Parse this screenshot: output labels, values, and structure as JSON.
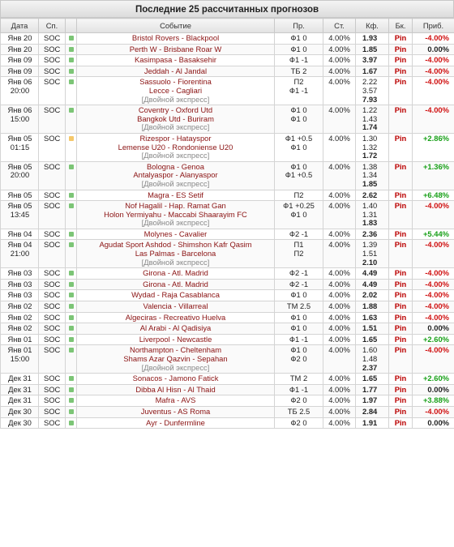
{
  "title": "Последние 25 рассчитанных прогнозов",
  "headers": {
    "date": "Дата",
    "sport": "Сп.",
    "event": "Событие",
    "pred": "Пр.",
    "stake": "Ст.",
    "odds": "Кф.",
    "bk": "Бк.",
    "profit": "Приб."
  },
  "rows": [
    {
      "date": [
        "Янв 20"
      ],
      "sport": "SOC",
      "status": "green",
      "events": [
        "Bristol Rovers - Blackpool"
      ],
      "preds": [
        "Ф1 0"
      ],
      "stake": "4.00%",
      "odds": [
        "1.93"
      ],
      "bk": "Pin",
      "profit": "-4.00%",
      "profit_type": "neg"
    },
    {
      "date": [
        "Янв 20"
      ],
      "sport": "SOC",
      "status": "green",
      "events": [
        "Perth W - Brisbane Roar W"
      ],
      "preds": [
        "Ф1 0"
      ],
      "stake": "4.00%",
      "odds": [
        "1.85"
      ],
      "bk": "Pin",
      "profit": "0.00%",
      "profit_type": "zero"
    },
    {
      "date": [
        "Янв 09"
      ],
      "sport": "SOC",
      "status": "green",
      "events": [
        "Kasimpasa - Basaksehir"
      ],
      "preds": [
        "Ф1 -1"
      ],
      "stake": "4.00%",
      "odds": [
        "3.97"
      ],
      "bk": "Pin",
      "profit": "-4.00%",
      "profit_type": "neg"
    },
    {
      "date": [
        "Янв 09"
      ],
      "sport": "SOC",
      "status": "green",
      "events": [
        "Jeddah - Al Jandal"
      ],
      "preds": [
        "ТБ 2"
      ],
      "stake": "4.00%",
      "odds": [
        "1.67"
      ],
      "bk": "Pin",
      "profit": "-4.00%",
      "profit_type": "neg"
    },
    {
      "date": [
        "Янв 06",
        "20:00"
      ],
      "sport": "SOC",
      "status": "green",
      "events": [
        "Sassuolo - Fiorentina",
        "Lecce - Cagliari"
      ],
      "express": "[Двойной экспресс]",
      "preds": [
        "П2",
        "Ф1 -1"
      ],
      "stake": "4.00%",
      "odds": [
        "2.22",
        "3.57",
        "7.93"
      ],
      "bk": "Pin",
      "profit": "-4.00%",
      "profit_type": "neg"
    },
    {
      "date": [
        "Янв 06",
        "15:00"
      ],
      "sport": "SOC",
      "status": "green",
      "events": [
        "Coventry - Oxford Utd",
        "Bangkok Utd - Buriram"
      ],
      "express": "[Двойной экспресс]",
      "preds": [
        "Ф1 0",
        "Ф1 0"
      ],
      "stake": "4.00%",
      "odds": [
        "1.22",
        "1.43",
        "1.74"
      ],
      "bk": "Pin",
      "profit": "-4.00%",
      "profit_type": "neg"
    },
    {
      "date": [
        "Янв 05",
        "01:15"
      ],
      "sport": "SOC",
      "status": "yellow",
      "events": [
        "Rizespor - Hatayspor",
        "Lemense U20 - Rondoniense U20"
      ],
      "express": "[Двойной экспресс]",
      "preds": [
        "Ф1 +0.5",
        "Ф1 0"
      ],
      "stake": "4.00%",
      "odds": [
        "1.30",
        "1.32",
        "1.72"
      ],
      "bk": "Pin",
      "profit": "+2.86%",
      "profit_type": "pos"
    },
    {
      "date": [
        "Янв 05",
        "20:00"
      ],
      "sport": "SOC",
      "status": "green",
      "events": [
        "Bologna - Genoa",
        "Antalyaspor - Alanyaspor"
      ],
      "express": "[Двойной экспресс]",
      "preds": [
        "Ф1 0",
        "Ф1 +0.5"
      ],
      "stake": "4.00%",
      "odds": [
        "1.38",
        "1.34",
        "1.85"
      ],
      "bk": "Pin",
      "profit": "+1.36%",
      "profit_type": "pos"
    },
    {
      "date": [
        "Янв 05"
      ],
      "sport": "SOC",
      "status": "green",
      "events": [
        "Magra - ES Setif"
      ],
      "preds": [
        "П2"
      ],
      "stake": "4.00%",
      "odds": [
        "2.62"
      ],
      "bk": "Pin",
      "profit": "+6.48%",
      "profit_type": "pos"
    },
    {
      "date": [
        "Янв 05",
        "13:45"
      ],
      "sport": "SOC",
      "status": "green",
      "events": [
        "Nof Hagalil - Hap. Ramat Gan",
        "Holon Yermiyahu - Maccabi Shaarayim FC"
      ],
      "express": "[Двойной экспресс]",
      "preds": [
        "Ф1 +0.25",
        "Ф1 0"
      ],
      "stake": "4.00%",
      "odds": [
        "1.40",
        "1.31",
        "1.83"
      ],
      "bk": "Pin",
      "profit": "-4.00%",
      "profit_type": "neg"
    },
    {
      "date": [
        "Янв 04"
      ],
      "sport": "SOC",
      "status": "green",
      "events": [
        "Molynes - Cavalier"
      ],
      "preds": [
        "Ф2 -1"
      ],
      "stake": "4.00%",
      "odds": [
        "2.36"
      ],
      "bk": "Pin",
      "profit": "+5.44%",
      "profit_type": "pos"
    },
    {
      "date": [
        "Янв 04",
        "21:00"
      ],
      "sport": "SOC",
      "status": "green",
      "events": [
        "Agudat Sport Ashdod - Shimshon Kafr Qasim",
        "Las Palmas - Barcelona"
      ],
      "express": "[Двойной экспресс]",
      "preds": [
        "П1",
        "П2"
      ],
      "stake": "4.00%",
      "odds": [
        "1.39",
        "1.51",
        "2.10"
      ],
      "bk": "Pin",
      "profit": "-4.00%",
      "profit_type": "neg"
    },
    {
      "date": [
        "Янв 03"
      ],
      "sport": "SOC",
      "status": "green",
      "events": [
        "Girona - Atl. Madrid"
      ],
      "preds": [
        "Ф2 -1"
      ],
      "stake": "4.00%",
      "odds": [
        "4.49"
      ],
      "bk": "Pin",
      "profit": "-4.00%",
      "profit_type": "neg"
    },
    {
      "date": [
        "Янв 03"
      ],
      "sport": "SOC",
      "status": "green",
      "events": [
        "Girona - Atl. Madrid"
      ],
      "preds": [
        "Ф2 -1"
      ],
      "stake": "4.00%",
      "odds": [
        "4.49"
      ],
      "bk": "Pin",
      "profit": "-4.00%",
      "profit_type": "neg"
    },
    {
      "date": [
        "Янв 03"
      ],
      "sport": "SOC",
      "status": "green",
      "events": [
        "Wydad - Raja Casablanca"
      ],
      "preds": [
        "Ф1 0"
      ],
      "stake": "4.00%",
      "odds": [
        "2.02"
      ],
      "bk": "Pin",
      "profit": "-4.00%",
      "profit_type": "neg"
    },
    {
      "date": [
        "Янв 02"
      ],
      "sport": "SOC",
      "status": "green",
      "events": [
        "Valencia - Villarreal"
      ],
      "preds": [
        "ТМ 2.5"
      ],
      "stake": "4.00%",
      "odds": [
        "1.88"
      ],
      "bk": "Pin",
      "profit": "-4.00%",
      "profit_type": "neg"
    },
    {
      "date": [
        "Янв 02"
      ],
      "sport": "SOC",
      "status": "green",
      "events": [
        "Algeciras - Recreativo Huelva"
      ],
      "preds": [
        "Ф1 0"
      ],
      "stake": "4.00%",
      "odds": [
        "1.63"
      ],
      "bk": "Pin",
      "profit": "-4.00%",
      "profit_type": "neg"
    },
    {
      "date": [
        "Янв 02"
      ],
      "sport": "SOC",
      "status": "green",
      "events": [
        "Al Arabi - Al Qadisiya"
      ],
      "preds": [
        "Ф1 0"
      ],
      "stake": "4.00%",
      "odds": [
        "1.51"
      ],
      "bk": "Pin",
      "profit": "0.00%",
      "profit_type": "zero"
    },
    {
      "date": [
        "Янв 01"
      ],
      "sport": "SOC",
      "status": "green",
      "events": [
        "Liverpool - Newcastle"
      ],
      "preds": [
        "Ф1 -1"
      ],
      "stake": "4.00%",
      "odds": [
        "1.65"
      ],
      "bk": "Pin",
      "profit": "+2.60%",
      "profit_type": "pos"
    },
    {
      "date": [
        "Янв 01",
        "15:00"
      ],
      "sport": "SOC",
      "status": "green",
      "events": [
        "Northampton - Cheltenham",
        "Shams Azar Qazvin - Sepahan"
      ],
      "express": "[Двойной экспресс]",
      "preds": [
        "Ф1 0",
        "Ф2 0"
      ],
      "stake": "4.00%",
      "odds": [
        "1.60",
        "1.48",
        "2.37"
      ],
      "bk": "Pin",
      "profit": "-4.00%",
      "profit_type": "neg"
    },
    {
      "date": [
        "Дек 31"
      ],
      "sport": "SOC",
      "status": "green",
      "events": [
        "Sonacos - Jamono Fatick"
      ],
      "preds": [
        "ТМ 2"
      ],
      "stake": "4.00%",
      "odds": [
        "1.65"
      ],
      "bk": "Pin",
      "profit": "+2.60%",
      "profit_type": "pos"
    },
    {
      "date": [
        "Дек 31"
      ],
      "sport": "SOC",
      "status": "green",
      "events": [
        "Dibba Al Hisn - Al Thaid"
      ],
      "preds": [
        "Ф1 -1"
      ],
      "stake": "4.00%",
      "odds": [
        "1.77"
      ],
      "bk": "Pin",
      "profit": "0.00%",
      "profit_type": "zero"
    },
    {
      "date": [
        "Дек 31"
      ],
      "sport": "SOC",
      "status": "green",
      "events": [
        "Mafra - AVS"
      ],
      "preds": [
        "Ф2 0"
      ],
      "stake": "4.00%",
      "odds": [
        "1.97"
      ],
      "bk": "Pin",
      "profit": "+3.88%",
      "profit_type": "pos"
    },
    {
      "date": [
        "Дек 30"
      ],
      "sport": "SOC",
      "status": "green",
      "events": [
        "Juventus - AS Roma"
      ],
      "preds": [
        "ТБ 2.5"
      ],
      "stake": "4.00%",
      "odds": [
        "2.84"
      ],
      "bk": "Pin",
      "profit": "-4.00%",
      "profit_type": "neg"
    },
    {
      "date": [
        "Дек 30"
      ],
      "sport": "SOC",
      "status": "green",
      "events": [
        "Ayr - Dunfermline"
      ],
      "preds": [
        "Ф2 0"
      ],
      "stake": "4.00%",
      "odds": [
        "1.91"
      ],
      "bk": "Pin",
      "profit": "0.00%",
      "profit_type": "zero"
    }
  ]
}
